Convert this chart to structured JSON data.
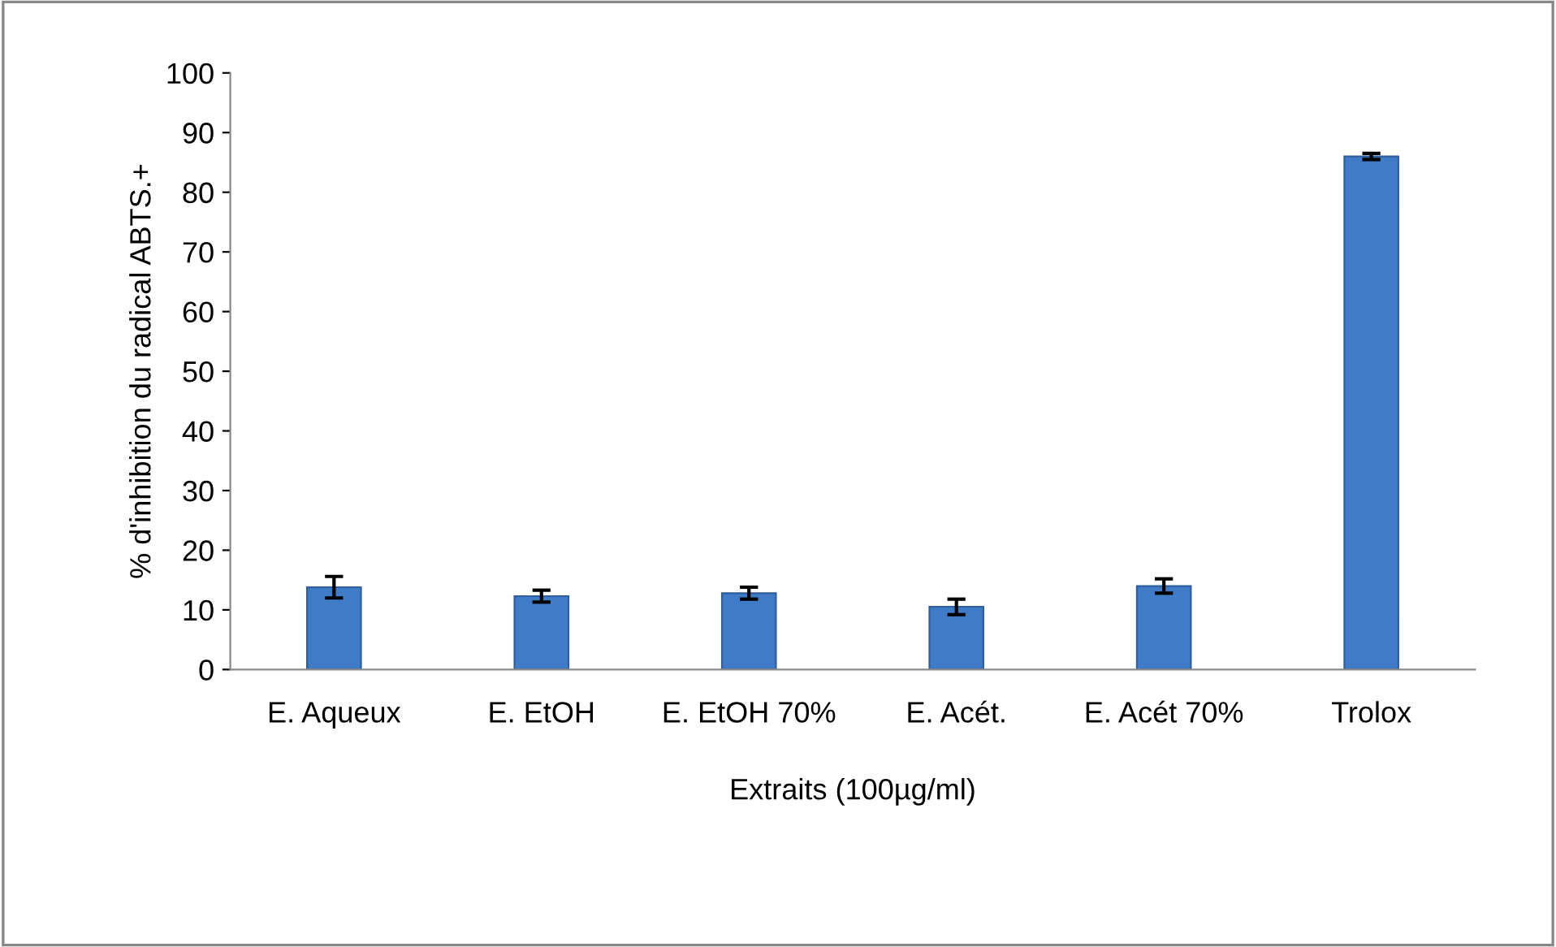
{
  "chart_data": {
    "type": "bar",
    "xlabel": "Extraits (100µg/ml)",
    "ylabel": "% d'inhibition du radical ABTS.+",
    "categories": [
      "E. Aqueux",
      "E. EtOH",
      "E. EtOH 70%",
      "E. Acét.",
      "E. Acét 70%",
      "Trolox"
    ],
    "values": [
      13.8,
      12.3,
      12.8,
      10.5,
      14.0,
      86.0
    ],
    "errors": [
      1.8,
      1.0,
      1.0,
      1.3,
      1.2,
      0.5
    ],
    "color": "#3f7bc6",
    "ylim": [
      0,
      100
    ],
    "yticks": [
      0,
      10,
      20,
      30,
      40,
      50,
      60,
      70,
      80,
      90,
      100
    ],
    "grid": false
  }
}
